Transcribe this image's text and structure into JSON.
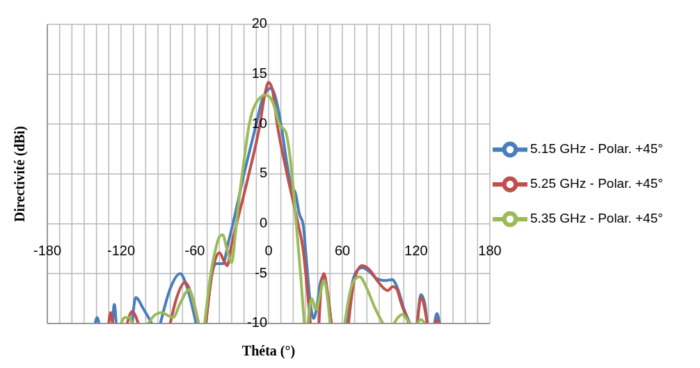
{
  "chart_data": {
    "type": "line",
    "xlabel": "Théta (°)",
    "ylabel": "Directivité (dBi)",
    "xlim": [
      -180,
      180
    ],
    "xticks": [
      -180,
      {
        "value": -170,
        "label": null
      },
      {
        "value": -160,
        "label": null
      },
      {
        "value": -150,
        "label": null
      },
      {
        "value": -140,
        "label": null
      },
      {
        "value": -130,
        "label": null
      },
      -120,
      {
        "value": -110,
        "label": null
      },
      {
        "value": -100,
        "label": null
      },
      {
        "value": -90,
        "label": null
      },
      {
        "value": -80,
        "label": null
      },
      {
        "value": -70,
        "label": null
      },
      -60,
      {
        "value": -50,
        "label": null
      },
      {
        "value": -40,
        "label": null
      },
      {
        "value": -30,
        "label": null
      },
      {
        "value": -20,
        "label": null
      },
      {
        "value": -10,
        "label": null
      },
      0,
      {
        "value": 10,
        "label": null
      },
      {
        "value": 20,
        "label": null
      },
      {
        "value": 30,
        "label": null
      },
      {
        "value": 40,
        "label": null
      },
      {
        "value": 50,
        "label": null
      },
      60,
      {
        "value": 70,
        "label": null
      },
      {
        "value": 80,
        "label": null
      },
      {
        "value": 90,
        "label": null
      },
      {
        "value": 100,
        "label": null
      },
      {
        "value": 110,
        "label": null
      },
      120,
      {
        "value": 130,
        "label": null
      },
      {
        "value": 140,
        "label": null
      },
      {
        "value": 150,
        "label": null
      },
      {
        "value": 160,
        "label": null
      },
      {
        "value": 170,
        "label": null
      },
      180
    ],
    "ylim": [
      -10,
      20
    ],
    "yticks": [
      -10,
      -5,
      0,
      5,
      10,
      15,
      20
    ],
    "grid": true,
    "legend": "right",
    "marker": "none",
    "line_style": "solid",
    "series": [
      {
        "name": "5.15 GHz - Polar. +45°",
        "color": "#4a7ebb",
        "x": [
          -141,
          -139.5,
          -138,
          -132,
          -127,
          -125.5,
          -124,
          -118,
          -111,
          -108,
          -102,
          -95,
          -91,
          -88,
          -80,
          -72,
          -66,
          -59,
          -55,
          -51,
          -46,
          -43,
          -37,
          -33,
          -29,
          -20,
          -10,
          -5,
          2,
          6,
          10,
          15,
          18,
          22,
          25,
          28,
          31,
          34,
          36.6,
          39,
          42,
          45,
          48,
          51,
          58,
          64,
          68,
          72,
          76,
          82,
          88,
          95,
          100.6,
          105,
          110,
          115,
          118,
          121,
          124,
          127,
          129,
          132,
          135,
          137,
          139
        ],
        "values": [
          -10,
          -9.4,
          -10,
          null,
          -10,
          -8.1,
          -10,
          null,
          -10,
          -7.4,
          -8.5,
          -10,
          null,
          -10,
          -6.5,
          -5.0,
          -6.5,
          -10,
          null,
          -10,
          -5,
          -4.0,
          -4.0,
          -2,
          0,
          5,
          10,
          12.5,
          13.6,
          12.5,
          10,
          6,
          4,
          3,
          1,
          0,
          -4,
          -8,
          -9.5,
          -8.5,
          -6,
          -5.2,
          -7,
          -10,
          null,
          -10,
          -6,
          -4.7,
          -4.4,
          -4.8,
          -5.5,
          -5.7,
          -5.6,
          -6.5,
          -8.5,
          -10,
          null,
          -10,
          -7.1,
          -8,
          -10,
          null,
          -10,
          -9.0,
          -10
        ]
      },
      {
        "name": "5.25 GHz - Polar. +45°",
        "color": "#c0504d",
        "x": [
          -130,
          -128.5,
          -127,
          -120,
          -115,
          -111,
          -106,
          -95,
          -80,
          -75,
          -68,
          -63,
          -57,
          -54,
          -51,
          -46,
          -40,
          -36,
          -33.7,
          -30,
          -26,
          -16,
          -7,
          -3,
          0,
          3,
          7,
          15,
          24,
          28,
          31,
          34,
          38,
          41,
          43,
          45,
          48,
          51,
          58,
          65,
          70,
          76,
          82,
          89,
          94,
          97,
          101,
          104,
          108,
          114,
          118,
          121,
          124,
          127,
          129,
          132,
          135.5,
          137,
          138.5
        ],
        "values": [
          -10,
          -8.9,
          -10,
          null,
          -10,
          -8.8,
          -10,
          null,
          -10,
          -7.5,
          -5.9,
          -7,
          -10,
          null,
          -10,
          -5,
          -2.9,
          -3.8,
          -4.2,
          -2,
          0,
          5,
          10,
          13,
          14.2,
          13.5,
          10,
          5,
          0,
          -2.5,
          -6,
          -10,
          null,
          -10,
          -6,
          -5.0,
          -7,
          -10,
          null,
          -10,
          -5.5,
          -4.2,
          -4.6,
          -5.8,
          -6.5,
          -6.7,
          -6.3,
          -6.5,
          -8,
          -10,
          null,
          -10,
          -7.4,
          -8.5,
          -10,
          null,
          -10,
          -9.6,
          -10
        ]
      },
      {
        "name": "5.35 GHz - Polar. +45°",
        "color": "#9bbb59",
        "x": [
          -120,
          -117,
          -113,
          -111,
          -105,
          -98,
          -92,
          -87,
          -82,
          -77.6,
          -72,
          -64.6,
          -61,
          -57,
          -54,
          -52,
          -47,
          -43,
          -40,
          -37.3,
          -34,
          -30,
          -27,
          -24,
          -21.4,
          -15.7,
          -8,
          -3,
          1,
          4,
          8.6,
          14,
          16,
          19,
          22.5,
          26,
          29,
          30.5,
          32,
          35,
          38.6,
          42,
          45,
          48,
          50,
          56,
          62,
          66,
          70,
          74,
          80,
          86,
          93,
          97,
          102,
          106,
          109,
          112,
          115,
          118,
          121,
          124,
          127
        ],
        "values": [
          -10,
          -9.4,
          -9.4,
          -10,
          null,
          -10,
          -9.1,
          -8.9,
          -9.2,
          -9.4,
          -8,
          -6.6,
          -8,
          -10,
          null,
          -10,
          -5,
          -2.5,
          -1.3,
          -1.1,
          -2.5,
          -3.9,
          -1,
          2.5,
          5,
          10,
          12.5,
          12.9,
          12.7,
          12,
          10,
          9.2,
          8,
          5,
          0,
          -5,
          -10,
          null,
          -10,
          -7.5,
          -8.6,
          -7,
          -5.7,
          -7.5,
          -10,
          null,
          -10,
          -7,
          -5.6,
          -5.3,
          -6.5,
          -8.3,
          -10,
          null,
          -10,
          -9.3,
          -9.1,
          -9.5,
          -10,
          null,
          -10,
          -9.6,
          -10
        ]
      }
    ]
  }
}
